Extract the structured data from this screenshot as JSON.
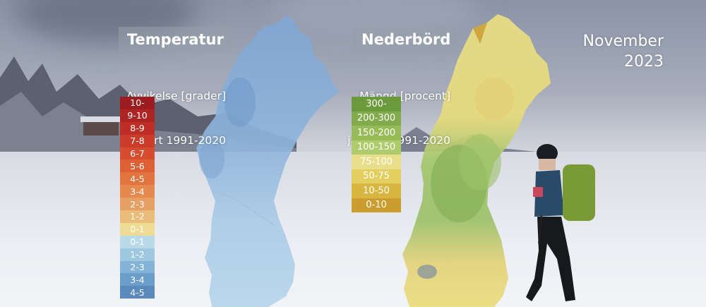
{
  "temperature": {
    "title": "Temperatur",
    "subtitle_line1": "Avvikelse [grader]",
    "subtitle_line2": "jämfört 1991-2020",
    "legend": [
      {
        "label": "10-",
        "color": "#9c1c1f"
      },
      {
        "label": "9-10",
        "color": "#ad2423"
      },
      {
        "label": "8-9",
        "color": "#be2e26"
      },
      {
        "label": "7-8",
        "color": "#cc3c2a"
      },
      {
        "label": "6-7",
        "color": "#d64c2e"
      },
      {
        "label": "5-6",
        "color": "#de6035"
      },
      {
        "label": "4-5",
        "color": "#e2743e"
      },
      {
        "label": "3-4",
        "color": "#e5894f"
      },
      {
        "label": "2-3",
        "color": "#e7a063"
      },
      {
        "label": "1-2",
        "color": "#e9bd79"
      },
      {
        "label": "0-1",
        "color": "#eedc94"
      },
      {
        "label": "0-1",
        "color": "#b9dbe9"
      },
      {
        "label": "1-2",
        "color": "#9dc8e0"
      },
      {
        "label": "2-3",
        "color": "#83b4d7"
      },
      {
        "label": "3-4",
        "color": "#6b9ecb"
      },
      {
        "label": "4-5",
        "color": "#5a8abd"
      }
    ]
  },
  "precipitation": {
    "title": "Nederbörd",
    "subtitle_line1": "Mängd [procent]",
    "subtitle_line2": "jämfört 1991-2020",
    "legend": [
      {
        "label": "300-",
        "color": "#6b9a3c"
      },
      {
        "label": "200-300",
        "color": "#82ab4b"
      },
      {
        "label": "150-200",
        "color": "#97bb59"
      },
      {
        "label": "100-150",
        "color": "#aecc6c"
      },
      {
        "label": "75-100",
        "color": "#e9df8a"
      },
      {
        "label": "50-75",
        "color": "#e2cf60"
      },
      {
        "label": "10-50",
        "color": "#d8b63f"
      },
      {
        "label": "0-10",
        "color": "#cb9c2e"
      }
    ]
  },
  "period": {
    "month": "November",
    "year": "2023"
  },
  "map_colors": {
    "temp_north": "#87acd6",
    "temp_south": "#b3d3ea",
    "prec_north": "#e8dc83",
    "prec_middle": "#9ec469",
    "prec_south": "#ebdc7c"
  }
}
